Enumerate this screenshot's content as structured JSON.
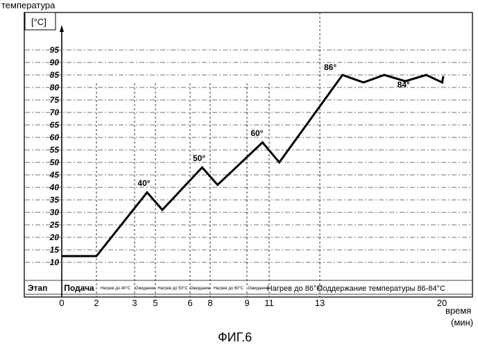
{
  "chart_data": {
    "type": "line",
    "ylabel": "температура",
    "yunit": "[°C]",
    "xlabel": "время",
    "xunit": "(мин)",
    "figure_caption": "ФИГ.6",
    "xlim": [
      0,
      21
    ],
    "ylim": [
      0,
      103
    ],
    "y_ticks": [
      10,
      15,
      20,
      25,
      30,
      35,
      40,
      45,
      50,
      55,
      60,
      65,
      70,
      75,
      80,
      85,
      90,
      95
    ],
    "x_ticks": [
      0,
      2,
      3,
      5,
      6,
      8,
      9,
      11,
      13,
      20
    ],
    "phase_boundaries": [
      2,
      3,
      5,
      6,
      8,
      9,
      11,
      13
    ],
    "series": [
      {
        "x": [
          0,
          2,
          4.2,
          5.2,
          7.2,
          8.2,
          10.4,
          11.4,
          14.3,
          15.5,
          16.7,
          17.9,
          19.1,
          20.3,
          21.5
        ],
        "y": [
          12.5,
          12.5,
          38,
          31,
          48,
          41,
          58,
          50,
          85,
          82,
          85,
          82.5,
          85,
          82,
          84.5
        ]
      }
    ],
    "annotations": [
      {
        "text": "40°",
        "x": 3.9,
        "y": 40.5
      },
      {
        "text": "50°",
        "x": 6.9,
        "y": 50.5
      },
      {
        "text": "60°",
        "x": 9.9,
        "y": 60.5
      },
      {
        "text": "86°",
        "x": 13.6,
        "y": 87
      },
      {
        "text": "84°",
        "x": 17.8,
        "y": 80
      }
    ],
    "stage_row": {
      "label": "Этап",
      "cells": [
        {
          "text": "Подача",
          "from": 0,
          "to": 2,
          "style": "bold"
        },
        {
          "text": "Нагрев до 40°С",
          "from": 2,
          "to": 3,
          "style": "small"
        },
        {
          "text": "Ожидание",
          "from": 3,
          "to": 5,
          "style": "small"
        },
        {
          "text": "Нагрев до 50°С",
          "from": 5,
          "to": 6,
          "style": "small"
        },
        {
          "text": "Ожидание",
          "from": 6,
          "to": 8,
          "style": "small"
        },
        {
          "text": "Нагрев до 60°С",
          "from": 8,
          "to": 9,
          "style": "small"
        },
        {
          "text": "Ожидание",
          "from": 9,
          "to": 11,
          "style": "small"
        },
        {
          "text": "Нагрев до 86°С",
          "from": 11,
          "to": 13,
          "style": "big"
        },
        {
          "text": "Поддержание температуры 86-84°С",
          "from": 13,
          "to": 21,
          "style": "big"
        }
      ]
    },
    "grid": true
  }
}
